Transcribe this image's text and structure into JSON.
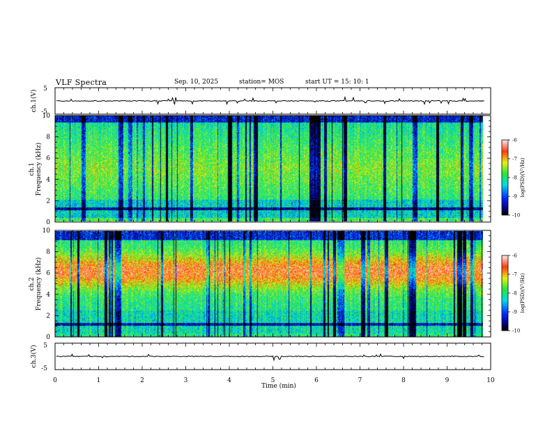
{
  "header": {
    "title": "VLF Spectra",
    "date": "Sep. 10, 2025",
    "station": "station= MOS",
    "start_ut": "start  UT =   15: 10: 1"
  },
  "chart_data": [
    {
      "type": "line",
      "panel": "ch1-voltage",
      "ylabel": "ch.1(V)",
      "ylim": [
        -5,
        5
      ],
      "y_tick_labels": [
        "5",
        "-5"
      ],
      "baseline_value": 0,
      "xlim": [
        0,
        10
      ],
      "data_end_min": 9.85
    },
    {
      "type": "heatmap",
      "panel": "ch1-spectrogram",
      "ylabel_line1": "ch.1",
      "ylabel_line2": "Frequency (kHz)",
      "xlim": [
        0,
        10
      ],
      "ylim": [
        0,
        10
      ],
      "y_ticks": [
        "0",
        "2",
        "4",
        "6",
        "8",
        "10"
      ],
      "data_end_min": 9.85,
      "colorbar": {
        "label": "log(PSD)(V²/Hz)",
        "range": [
          -10,
          -6
        ],
        "tick_labels": [
          "-6",
          "-7",
          "-8",
          "-9",
          "-10"
        ]
      }
    },
    {
      "type": "heatmap",
      "panel": "ch2-spectrogram",
      "ylabel_line1": "ch.2",
      "ylabel_line2": "Frequency (kHz)",
      "xlim": [
        0,
        10
      ],
      "ylim": [
        0,
        10
      ],
      "y_ticks": [
        "0",
        "2",
        "4",
        "6",
        "8",
        "10"
      ],
      "data_end_min": 9.85,
      "colorbar": {
        "label": "log(PSD)(V²/Hz)",
        "range": [
          -10,
          -6
        ],
        "tick_labels": [
          "-6",
          "-7",
          "-8",
          "-9",
          "-10"
        ]
      }
    },
    {
      "type": "line",
      "panel": "ch3-voltage",
      "ylabel": "ch.3(V)",
      "ylim": [
        -5,
        5
      ],
      "y_tick_labels": [
        "5",
        "-5"
      ],
      "baseline_value": 0,
      "xlim": [
        0,
        10
      ],
      "data_end_min": 9.85,
      "xlabel": "Time  (min)",
      "x_ticks": [
        "0",
        "1",
        "2",
        "3",
        "4",
        "5",
        "6",
        "7",
        "8",
        "9",
        "10"
      ]
    }
  ],
  "colors": {
    "axis": "#000000",
    "trace": "#000000"
  }
}
